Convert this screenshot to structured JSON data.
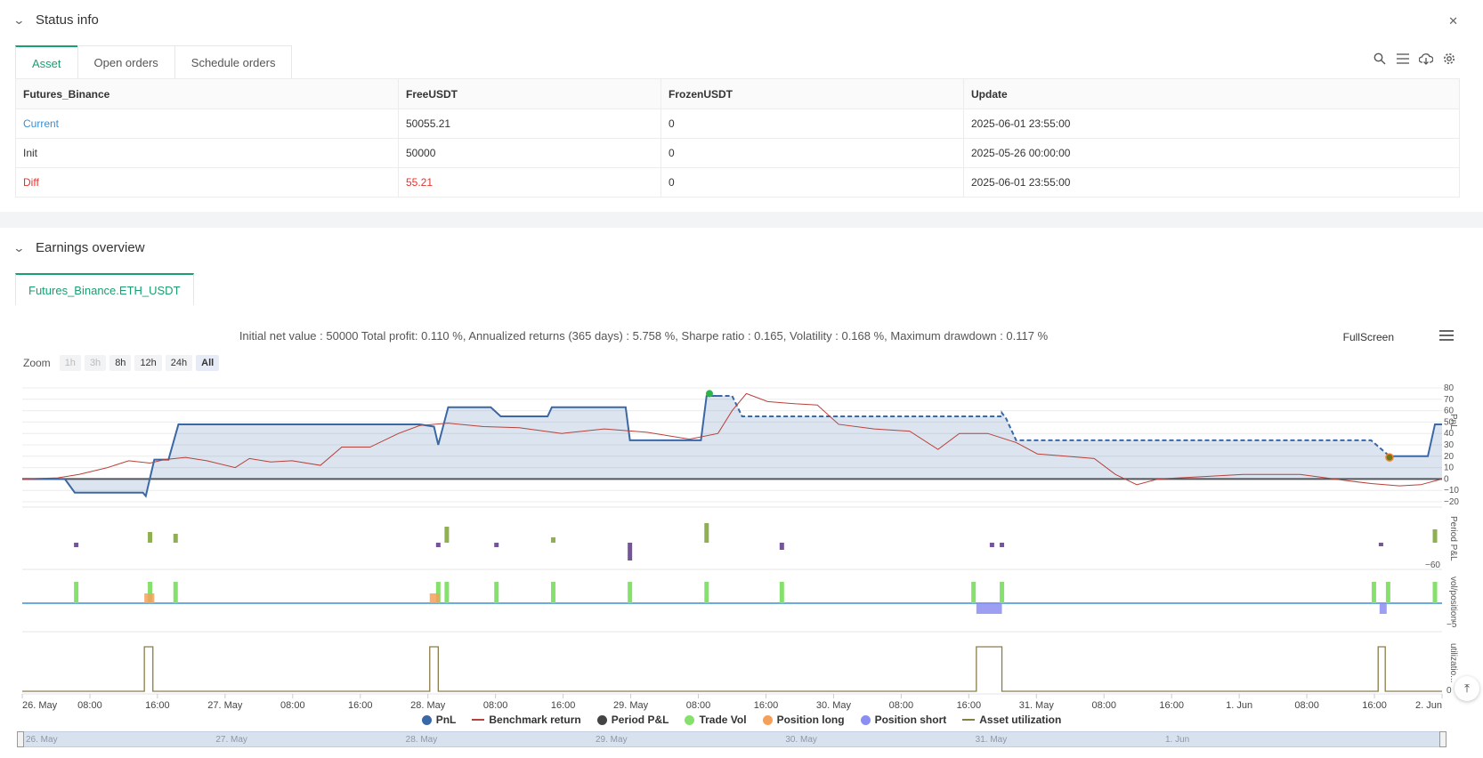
{
  "status": {
    "title": "Status info",
    "tabs": [
      "Asset",
      "Open orders",
      "Schedule orders"
    ],
    "table": {
      "headers": [
        "Futures_Binance",
        "FreeUSDT",
        "FrozenUSDT",
        "Update"
      ],
      "rows": [
        [
          "Current",
          "50055.21",
          "0",
          "2025-06-01 23:55:00"
        ],
        [
          "Init",
          "50000",
          "0",
          "2025-05-26 00:00:00"
        ],
        [
          "Diff",
          "55.21",
          "0",
          "2025-06-01 23:55:00"
        ]
      ]
    }
  },
  "earnings": {
    "title": "Earnings overview",
    "tab": "Futures_Binance.ETH_USDT",
    "summary": "Initial net value : 50000 Total profit: 0.110 %, Annualized returns (365 days) : 5.758 %, Sharpe ratio : 0.165, Volatility : 0.168 %, Maximum drawdown : 0.117 %",
    "fullscreen": "FullScreen",
    "zoom_label": "Zoom",
    "zoom_buttons": [
      "1h",
      "3h",
      "8h",
      "12h",
      "24h",
      "All"
    ]
  },
  "chart_data": {
    "type": "line",
    "x_ticks": [
      "26. May",
      "08:00",
      "16:00",
      "27. May",
      "08:00",
      "16:00",
      "28. May",
      "08:00",
      "16:00",
      "29. May",
      "08:00",
      "16:00",
      "30. May",
      "08:00",
      "16:00",
      "31. May",
      "08:00",
      "16:00",
      "1. Jun",
      "08:00",
      "16:00",
      "2. Jun"
    ],
    "pnl_axis_label": "PnL",
    "pnl_ticks": [
      "80",
      "70",
      "60",
      "50",
      "40",
      "30",
      "20",
      "10",
      "0",
      "−10",
      "−20"
    ],
    "pnl_ylim": [
      -20,
      80
    ],
    "period_axis_label": "Period P&L",
    "period_tick": "−60",
    "vol_axis_label": "vol/position",
    "vol_tick": "−5",
    "util_axis_label": "utilizatio...",
    "util_tick": "0",
    "pnl_series": [
      [
        0,
        0
      ],
      [
        0.03,
        0
      ],
      [
        0.037,
        -12
      ],
      [
        0.085,
        -12
      ],
      [
        0.087,
        -15
      ],
      [
        0.093,
        17
      ],
      [
        0.103,
        17
      ],
      [
        0.11,
        48
      ],
      [
        0.28,
        48
      ],
      [
        0.29,
        46
      ],
      [
        0.293,
        30
      ],
      [
        0.3,
        63
      ],
      [
        0.33,
        63
      ],
      [
        0.337,
        55
      ],
      [
        0.37,
        55
      ],
      [
        0.373,
        63
      ],
      [
        0.425,
        63
      ],
      [
        0.428,
        34
      ],
      [
        0.478,
        34
      ],
      [
        0.482,
        73
      ],
      [
        0.49,
        73
      ],
      [
        0.49,
        73
      ],
      [
        0.5,
        73
      ],
      [
        0.507,
        55
      ],
      [
        0.69,
        55
      ],
      [
        0.69,
        58
      ],
      [
        0.693,
        53
      ],
      [
        0.7,
        34
      ],
      [
        0.95,
        34
      ],
      [
        0.963,
        20
      ],
      [
        0.99,
        20
      ],
      [
        0.995,
        48
      ],
      [
        1,
        48
      ]
    ],
    "benchmark_series": [
      [
        0,
        0
      ],
      [
        0.025,
        1
      ],
      [
        0.04,
        4
      ],
      [
        0.06,
        10
      ],
      [
        0.075,
        16
      ],
      [
        0.09,
        14
      ],
      [
        0.1,
        17
      ],
      [
        0.115,
        19
      ],
      [
        0.13,
        16
      ],
      [
        0.15,
        10
      ],
      [
        0.16,
        18
      ],
      [
        0.175,
        15
      ],
      [
        0.19,
        16
      ],
      [
        0.21,
        12
      ],
      [
        0.225,
        28
      ],
      [
        0.245,
        28
      ],
      [
        0.265,
        40
      ],
      [
        0.28,
        47
      ],
      [
        0.3,
        49
      ],
      [
        0.325,
        46
      ],
      [
        0.35,
        45
      ],
      [
        0.38,
        40
      ],
      [
        0.41,
        44
      ],
      [
        0.44,
        41
      ],
      [
        0.47,
        35
      ],
      [
        0.49,
        40
      ],
      [
        0.5,
        60
      ],
      [
        0.51,
        75
      ],
      [
        0.525,
        68
      ],
      [
        0.545,
        66
      ],
      [
        0.56,
        65
      ],
      [
        0.575,
        48
      ],
      [
        0.6,
        44
      ],
      [
        0.625,
        42
      ],
      [
        0.645,
        26
      ],
      [
        0.66,
        40
      ],
      [
        0.68,
        40
      ],
      [
        0.7,
        32
      ],
      [
        0.715,
        22
      ],
      [
        0.735,
        20
      ],
      [
        0.755,
        18
      ],
      [
        0.77,
        4
      ],
      [
        0.785,
        -5
      ],
      [
        0.8,
        0
      ],
      [
        0.83,
        2
      ],
      [
        0.86,
        4
      ],
      [
        0.9,
        4
      ],
      [
        0.93,
        -1
      ],
      [
        0.95,
        -4
      ],
      [
        0.97,
        -6
      ],
      [
        0.985,
        -5
      ],
      [
        1,
        0
      ]
    ],
    "trade_markers": [
      [
        0.484,
        75
      ],
      [
        0.963,
        19
      ]
    ],
    "period_bars": [
      {
        "x": 0.038,
        "v": -5,
        "c": "p"
      },
      {
        "x": 0.09,
        "v": 12,
        "c": "g"
      },
      {
        "x": 0.108,
        "v": 10,
        "c": "g"
      },
      {
        "x": 0.293,
        "v": -5,
        "c": "p"
      },
      {
        "x": 0.299,
        "v": 18,
        "c": "g"
      },
      {
        "x": 0.334,
        "v": -5,
        "c": "p"
      },
      {
        "x": 0.374,
        "v": 6,
        "c": "g"
      },
      {
        "x": 0.428,
        "v": -20,
        "c": "p"
      },
      {
        "x": 0.482,
        "v": 22,
        "c": "g"
      },
      {
        "x": 0.535,
        "v": -8,
        "c": "p"
      },
      {
        "x": 0.683,
        "v": -5,
        "c": "p"
      },
      {
        "x": 0.69,
        "v": -5,
        "c": "p"
      },
      {
        "x": 0.957,
        "v": -4,
        "c": "p"
      },
      {
        "x": 0.995,
        "v": 15,
        "c": "g"
      }
    ],
    "trade_vol_bars": [
      0.038,
      0.09,
      0.108,
      0.293,
      0.299,
      0.334,
      0.374,
      0.428,
      0.482,
      0.535,
      0.67,
      0.69,
      0.952,
      0.962,
      0.995
    ],
    "position_long": [
      [
        0.086,
        0.093
      ],
      [
        0.287,
        0.294
      ]
    ],
    "position_short": [
      [
        0.672,
        0.69
      ],
      [
        0.956,
        0.961
      ]
    ],
    "utilization_blocks": [
      [
        0.086,
        0.092
      ],
      [
        0.287,
        0.293
      ],
      [
        0.672,
        0.69
      ],
      [
        0.955,
        0.96
      ]
    ],
    "legend": [
      {
        "label": "PnL",
        "color": "#3a68a6",
        "kind": "dot"
      },
      {
        "label": "Benchmark return",
        "color": "#b8413a",
        "kind": "line"
      },
      {
        "label": "Period P&L",
        "color": "#444444",
        "kind": "dot"
      },
      {
        "label": "Trade Vol",
        "color": "#86e06e",
        "kind": "dot"
      },
      {
        "label": "Position long",
        "color": "#f5a05a",
        "kind": "dot"
      },
      {
        "label": "Position short",
        "color": "#8b8ef0",
        "kind": "dot"
      },
      {
        "label": "Asset utilization",
        "color": "#8a7d4a",
        "kind": "line"
      }
    ],
    "navigator_labels": [
      "26. May",
      "27. May",
      "28. May",
      "29. May",
      "30. May",
      "31. May",
      "1. Jun"
    ]
  }
}
